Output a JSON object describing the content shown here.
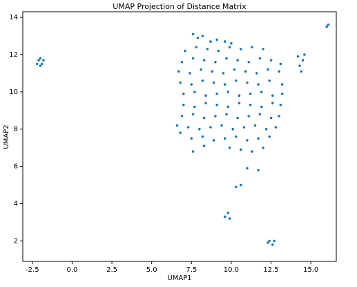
{
  "chart_data": {
    "type": "scatter",
    "title": "UMAP Projection of Distance Matrix",
    "x_label": "UMAP1",
    "y_label": "UMAP2",
    "color": "#1f77b4",
    "xlim": [
      -3.1,
      16.6
    ],
    "ylim": [
      0.9,
      14.3
    ],
    "xticks": [
      {
        "value": -2.5,
        "label": "-2.5"
      },
      {
        "value": 0,
        "label": "0.0"
      },
      {
        "value": 2.5,
        "label": "2.5"
      },
      {
        "value": 5,
        "label": "5.0"
      },
      {
        "value": 7.5,
        "label": "7.5"
      },
      {
        "value": 10,
        "label": "10.0"
      },
      {
        "value": 12.5,
        "label": "12.5"
      },
      {
        "value": 15,
        "label": "15.0"
      }
    ],
    "yticks": [
      2,
      4,
      6,
      8,
      10,
      12,
      14
    ],
    "x": [
      -2.1,
      -1.9,
      -2.2,
      -1.8,
      -2.0,
      -2.0,
      16.0,
      16.1,
      7.6,
      7.9,
      8.2,
      8.7,
      9.1,
      9.6,
      10.0,
      7.1,
      7.8,
      8.5,
      9.2,
      9.9,
      10.6,
      11.3,
      12.0,
      6.9,
      7.6,
      8.3,
      9.0,
      9.7,
      10.4,
      11.1,
      11.8,
      12.5,
      13.1,
      6.7,
      7.4,
      8.1,
      8.8,
      9.5,
      10.2,
      10.9,
      11.6,
      12.3,
      13.0,
      6.8,
      7.5,
      8.2,
      8.9,
      9.6,
      10.3,
      11.0,
      11.7,
      12.4,
      13.2,
      7.0,
      7.7,
      8.4,
      9.1,
      9.8,
      10.5,
      11.2,
      11.9,
      12.6,
      13.2,
      7.0,
      7.7,
      8.4,
      9.1,
      9.8,
      10.5,
      11.2,
      11.9,
      12.6,
      13.1,
      6.9,
      7.6,
      8.3,
      9.0,
      9.7,
      10.4,
      11.1,
      11.8,
      12.5,
      13.0,
      6.6,
      7.3,
      8.0,
      8.7,
      9.4,
      10.1,
      10.8,
      11.5,
      12.2,
      12.8,
      6.8,
      7.5,
      8.2,
      8.9,
      9.6,
      10.3,
      11.0,
      11.7,
      12.4,
      7.6,
      8.3,
      9.9,
      10.6,
      11.3,
      12.0,
      14.2,
      14.5,
      14.3,
      14.6,
      14.4,
      11.0,
      11.7,
      10.6,
      10.3,
      9.8,
      9.6,
      9.9,
      12.4,
      12.6,
      12.3,
      12.7
    ],
    "y": [
      11.7,
      11.5,
      11.5,
      11.7,
      11.8,
      11.4,
      13.5,
      13.6,
      13.1,
      12.9,
      13.0,
      12.7,
      12.8,
      12.7,
      12.6,
      12.2,
      12.4,
      12.3,
      12.2,
      12.4,
      12.3,
      12.4,
      12.3,
      11.6,
      11.8,
      11.7,
      11.6,
      11.8,
      11.7,
      11.6,
      11.8,
      11.7,
      11.5,
      11.1,
      11.0,
      11.2,
      11.1,
      11.0,
      11.2,
      11.1,
      11.0,
      11.2,
      11.1,
      10.5,
      10.4,
      10.6,
      10.5,
      10.4,
      10.6,
      10.5,
      10.4,
      10.6,
      10.4,
      9.9,
      10.0,
      9.8,
      9.9,
      10.0,
      9.8,
      9.9,
      10.0,
      9.8,
      9.9,
      9.3,
      9.2,
      9.4,
      9.3,
      9.2,
      9.4,
      9.3,
      9.2,
      9.4,
      9.3,
      8.7,
      8.8,
      8.6,
      8.7,
      8.8,
      8.6,
      8.7,
      8.8,
      8.6,
      8.7,
      8.2,
      8.1,
      8.0,
      8.1,
      8.2,
      8.0,
      8.1,
      8.2,
      8.0,
      8.1,
      7.8,
      7.5,
      7.6,
      7.4,
      7.5,
      7.6,
      7.4,
      7.5,
      7.6,
      6.8,
      7.1,
      7.0,
      6.9,
      6.8,
      7.0,
      11.9,
      11.7,
      11.4,
      12.0,
      11.1,
      5.9,
      5.8,
      5.0,
      4.9,
      3.5,
      3.3,
      3.2,
      2.0,
      1.8,
      1.9,
      2.0
    ]
  }
}
